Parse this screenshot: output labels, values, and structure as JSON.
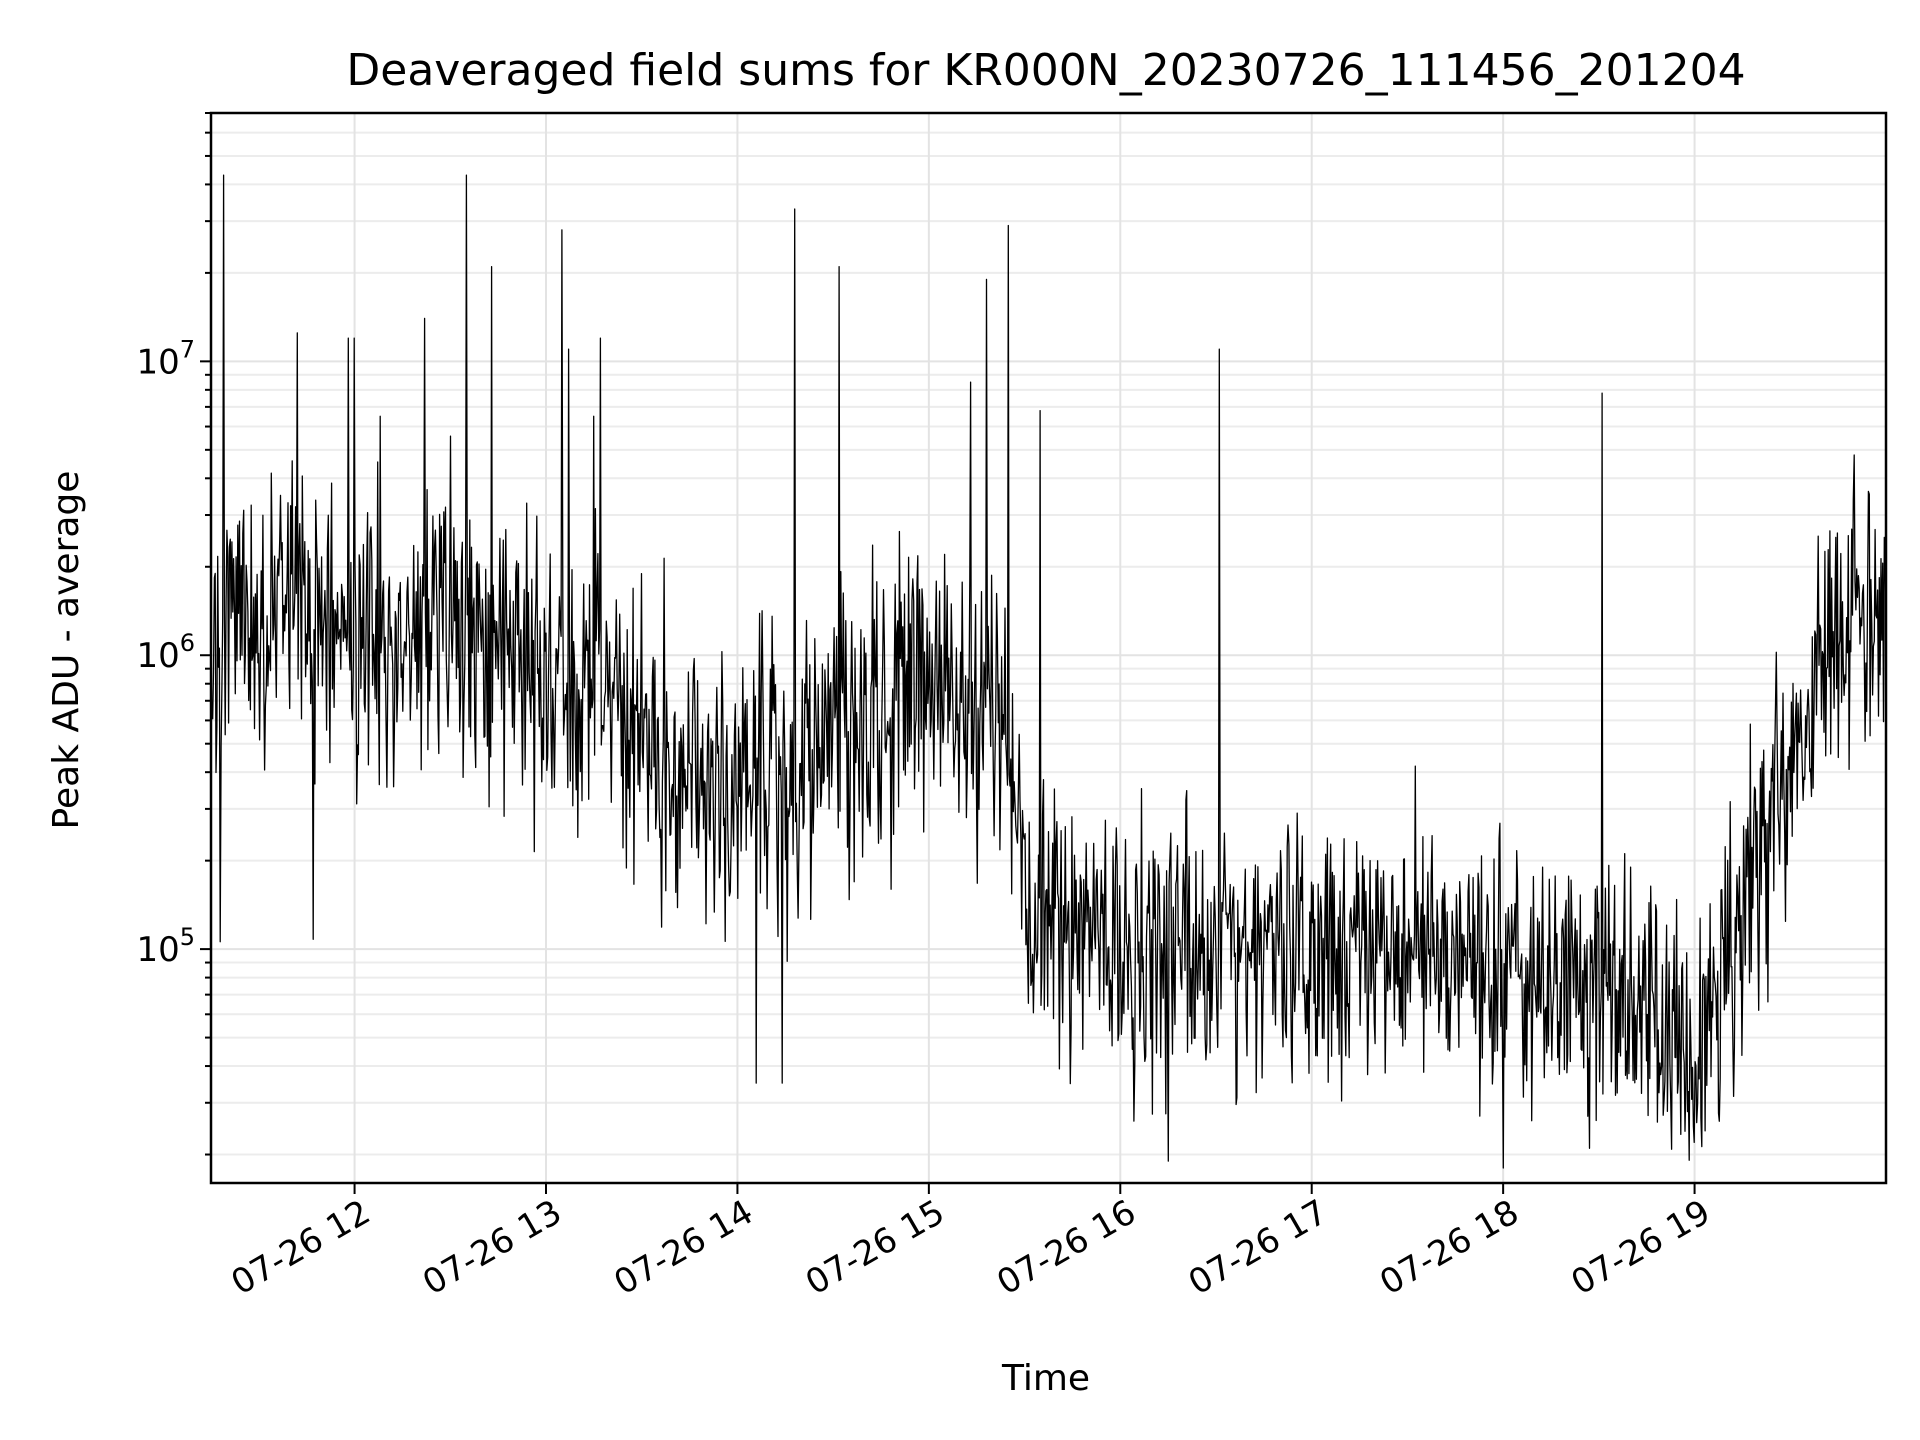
{
  "chart_data": {
    "type": "line",
    "title": "Deaveraged field sums for KR000N_20230726_111456_201204",
    "xlabel": "Time",
    "ylabel": "Peak ADU - average",
    "yscale": "log",
    "grid": true,
    "xlim": [
      "07-26 11:15",
      "07-26 20:00"
    ],
    "ylim": [
      16000,
      70000000
    ],
    "x_tick_labels": [
      "07-26 12",
      "07-26 13",
      "07-26 14",
      "07-26 15",
      "07-26 16",
      "07-26 17",
      "07-26 18",
      "07-26 19"
    ],
    "x_tick_hours": [
      12,
      13,
      14,
      15,
      16,
      17,
      18,
      19
    ],
    "y_ticks": [
      {
        "value": 100000,
        "base": "10",
        "exp": "5"
      },
      {
        "value": 1000000,
        "base": "10",
        "exp": "6"
      },
      {
        "value": 10000000,
        "base": "10",
        "exp": "7"
      }
    ],
    "series_color": "#000000",
    "series": [
      {
        "x_start": "07-26 11:15",
        "x_end": "07-26 20:00",
        "baseline": [
          [
            "11:15",
            1000000
          ],
          [
            "11:30",
            1300000
          ],
          [
            "11:45",
            1400000
          ],
          [
            "12:00",
            1200000
          ],
          [
            "12:15",
            1100000
          ],
          [
            "12:30",
            1500000
          ],
          [
            "12:45",
            1000000
          ],
          [
            "13:00",
            800000
          ],
          [
            "13:15",
            700000
          ],
          [
            "13:30",
            450000
          ],
          [
            "13:45",
            420000
          ],
          [
            "14:00",
            380000
          ],
          [
            "14:15",
            350000
          ],
          [
            "14:30",
            550000
          ],
          [
            "14:45",
            600000
          ],
          [
            "15:00",
            900000
          ],
          [
            "15:15",
            700000
          ],
          [
            "15:25",
            600000
          ],
          [
            "15:30",
            150000
          ],
          [
            "15:45",
            120000
          ],
          [
            "16:00",
            100000
          ],
          [
            "16:15",
            95000
          ],
          [
            "16:30",
            110000
          ],
          [
            "16:45",
            120000
          ],
          [
            "17:00",
            110000
          ],
          [
            "17:15",
            100000
          ],
          [
            "17:30",
            105000
          ],
          [
            "17:45",
            90000
          ],
          [
            "18:00",
            85000
          ],
          [
            "18:15",
            80000
          ],
          [
            "18:30",
            75000
          ],
          [
            "18:45",
            60000
          ],
          [
            "19:00",
            45000
          ],
          [
            "19:15",
            120000
          ],
          [
            "19:30",
            500000
          ],
          [
            "19:45",
            1300000
          ],
          [
            "20:00",
            1200000
          ]
        ],
        "spikes": [
          [
            "11:19",
            43000000
          ],
          [
            "11:25",
            2600000
          ],
          [
            "11:42",
            12500000
          ],
          [
            "11:58",
            12000000
          ],
          [
            "12:00",
            12000000
          ],
          [
            "12:08",
            6500000
          ],
          [
            "12:22",
            14000000
          ],
          [
            "12:35",
            43000000
          ],
          [
            "12:43",
            21000000
          ],
          [
            "13:05",
            28000000
          ],
          [
            "13:07",
            11000000
          ],
          [
            "13:15",
            6500000
          ],
          [
            "13:17",
            12000000
          ],
          [
            "14:18",
            33000000
          ],
          [
            "14:32",
            21000000
          ],
          [
            "15:13",
            8500000
          ],
          [
            "15:18",
            19000000
          ],
          [
            "15:25",
            29000000
          ],
          [
            "15:35",
            6800000
          ],
          [
            "16:31",
            11000000
          ],
          [
            "18:31",
            7800000
          ],
          [
            "19:50",
            4800000
          ]
        ],
        "dips": [
          [
            "11:18",
            106000
          ],
          [
            "11:47",
            108000
          ],
          [
            "14:06",
            35000
          ],
          [
            "14:14",
            35000
          ],
          [
            "16:15",
            19000
          ],
          [
            "18:00",
            18000
          ],
          [
            "18:27",
            21000
          ],
          [
            "19:00",
            22000
          ]
        ]
      }
    ]
  }
}
